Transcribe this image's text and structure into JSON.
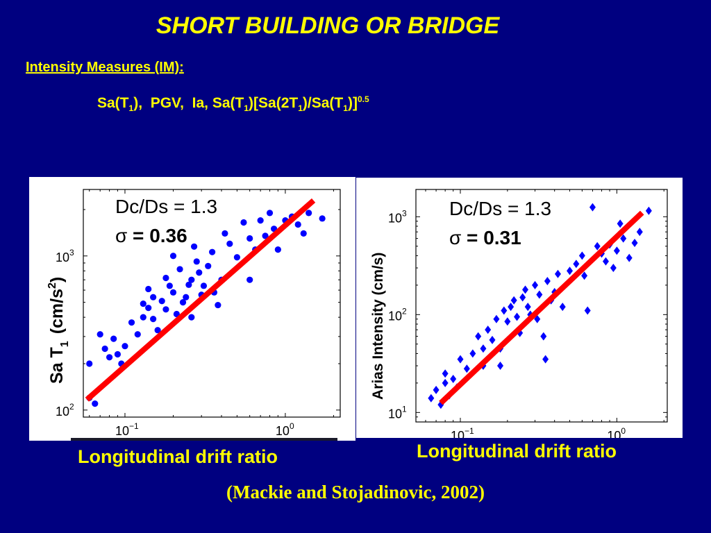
{
  "title": "SHORT BUILDING OR BRIDGE",
  "im_heading": "Intensity Measures (IM):",
  "im_list": {
    "sa": "Sa(T",
    "sa_sub": "1",
    "sa_close": "), ",
    "pgv": "PGV, ",
    "ia": "Ia, ",
    "combo_a": "Sa(T",
    "combo_sub1": "1",
    "combo_b": ")[Sa(2T",
    "combo_sub2": "1",
    "combo_c": ")/Sa(T",
    "combo_sub3": "1",
    "combo_d": ")]",
    "exponent": "0.5"
  },
  "citation": "(Mackie and Stojadinovic, 2002)",
  "colors": {
    "background": "#000080",
    "text": "#ffff00",
    "fit_line": "#ff0000",
    "points": "#0000ff"
  },
  "chart_data": [
    {
      "type": "scatter",
      "xlabel": "Longitudinal drift ratio",
      "ylabel": "Sa T1 (cm/s2)",
      "ylabel_main": "Sa T",
      "ylabel_sub": "1",
      "ylabel_unit": "(cm/s",
      "ylabel_sup": "2",
      "ylabel_close": ")",
      "x_scale": "log",
      "y_scale": "log",
      "xlim": [
        0.055,
        2.2
      ],
      "ylim": [
        90,
        2700
      ],
      "xticks": [
        {
          "base": "10",
          "exp": "−1",
          "value": 0.1
        },
        {
          "base": "10",
          "exp": "0",
          "value": 1
        }
      ],
      "yticks": [
        {
          "base": "10",
          "exp": "2",
          "value": 100
        },
        {
          "base": "10",
          "exp": "3",
          "value": 1000
        }
      ],
      "annotation_ratio": "Dc/Ds = 1.3",
      "annotation_sigma_symbol": "σ",
      "annotation_sigma": " = 0.36",
      "fit_line": {
        "x": [
          0.058,
          1.5
        ],
        "y": [
          117,
          2290
        ]
      },
      "marker": "circle",
      "points": [
        [
          0.06,
          120
        ],
        [
          0.06,
          200
        ],
        [
          0.065,
          110
        ],
        [
          0.07,
          310
        ],
        [
          0.075,
          250
        ],
        [
          0.08,
          220
        ],
        [
          0.085,
          290
        ],
        [
          0.09,
          230
        ],
        [
          0.095,
          200
        ],
        [
          0.1,
          260
        ],
        [
          0.11,
          370
        ],
        [
          0.12,
          310
        ],
        [
          0.13,
          400
        ],
        [
          0.13,
          490
        ],
        [
          0.14,
          460
        ],
        [
          0.14,
          610
        ],
        [
          0.15,
          390
        ],
        [
          0.15,
          540
        ],
        [
          0.16,
          330
        ],
        [
          0.17,
          510
        ],
        [
          0.18,
          720
        ],
        [
          0.18,
          450
        ],
        [
          0.19,
          640
        ],
        [
          0.2,
          580
        ],
        [
          0.2,
          1000
        ],
        [
          0.21,
          420
        ],
        [
          0.22,
          820
        ],
        [
          0.23,
          500
        ],
        [
          0.24,
          540
        ],
        [
          0.25,
          650
        ],
        [
          0.26,
          700
        ],
        [
          0.26,
          400
        ],
        [
          0.27,
          1150
        ],
        [
          0.28,
          920
        ],
        [
          0.29,
          780
        ],
        [
          0.3,
          560
        ],
        [
          0.31,
          640
        ],
        [
          0.33,
          860
        ],
        [
          0.35,
          1060
        ],
        [
          0.36,
          580
        ],
        [
          0.38,
          480
        ],
        [
          0.4,
          700
        ],
        [
          0.42,
          1400
        ],
        [
          0.45,
          1200
        ],
        [
          0.5,
          980
        ],
        [
          0.55,
          1650
        ],
        [
          0.6,
          1300
        ],
        [
          0.6,
          700
        ],
        [
          0.65,
          1100
        ],
        [
          0.7,
          1700
        ],
        [
          0.75,
          1350
        ],
        [
          0.8,
          1900
        ],
        [
          0.85,
          1500
        ],
        [
          0.9,
          1100
        ],
        [
          1.0,
          1700
        ],
        [
          1.1,
          1800
        ],
        [
          1.2,
          1600
        ],
        [
          1.3,
          1400
        ],
        [
          1.4,
          1900
        ],
        [
          1.7,
          1750
        ]
      ]
    },
    {
      "type": "scatter",
      "xlabel": "Longitudinal drift ratio",
      "ylabel": "Arias Intensity (cm/s)",
      "x_scale": "log",
      "y_scale": "log",
      "xlim": [
        0.052,
        2.1
      ],
      "ylim": [
        8,
        1900
      ],
      "xticks": [
        {
          "base": "10",
          "exp": "−1",
          "value": 0.1
        },
        {
          "base": "10",
          "exp": "0",
          "value": 1
        }
      ],
      "yticks": [
        {
          "base": "10",
          "exp": "1",
          "value": 10
        },
        {
          "base": "10",
          "exp": "2",
          "value": 100
        },
        {
          "base": "10",
          "exp": "3",
          "value": 1000
        }
      ],
      "annotation_ratio": "Dc/Ds = 1.3",
      "annotation_sigma_symbol": "σ",
      "annotation_sigma": " = 0.31",
      "fit_line": {
        "x": [
          0.075,
          1.45
        ],
        "y": [
          12.5,
          1100
        ]
      },
      "marker": "diamond",
      "points": [
        [
          0.065,
          14
        ],
        [
          0.07,
          17
        ],
        [
          0.075,
          12
        ],
        [
          0.08,
          25
        ],
        [
          0.08,
          20
        ],
        [
          0.085,
          15
        ],
        [
          0.09,
          22
        ],
        [
          0.095,
          18
        ],
        [
          0.1,
          35
        ],
        [
          0.11,
          28
        ],
        [
          0.12,
          40
        ],
        [
          0.13,
          60
        ],
        [
          0.14,
          45
        ],
        [
          0.14,
          30
        ],
        [
          0.15,
          70
        ],
        [
          0.16,
          55
        ],
        [
          0.17,
          90
        ],
        [
          0.18,
          45
        ],
        [
          0.18,
          30
        ],
        [
          0.19,
          110
        ],
        [
          0.2,
          85
        ],
        [
          0.21,
          120
        ],
        [
          0.22,
          140
        ],
        [
          0.23,
          95
        ],
        [
          0.24,
          65
        ],
        [
          0.25,
          150
        ],
        [
          0.26,
          180
        ],
        [
          0.27,
          120
        ],
        [
          0.28,
          100
        ],
        [
          0.3,
          200
        ],
        [
          0.31,
          90
        ],
        [
          0.32,
          160
        ],
        [
          0.34,
          60
        ],
        [
          0.35,
          35
        ],
        [
          0.36,
          220
        ],
        [
          0.38,
          140
        ],
        [
          0.4,
          170
        ],
        [
          0.42,
          260
        ],
        [
          0.45,
          120
        ],
        [
          0.5,
          280
        ],
        [
          0.55,
          330
        ],
        [
          0.6,
          400
        ],
        [
          0.62,
          250
        ],
        [
          0.65,
          110
        ],
        [
          0.7,
          1250
        ],
        [
          0.75,
          500
        ],
        [
          0.8,
          420
        ],
        [
          0.85,
          350
        ],
        [
          0.9,
          520
        ],
        [
          0.95,
          300
        ],
        [
          1.0,
          450
        ],
        [
          1.05,
          850
        ],
        [
          1.1,
          600
        ],
        [
          1.2,
          380
        ],
        [
          1.3,
          540
        ],
        [
          1.4,
          700
        ],
        [
          1.6,
          1150
        ]
      ]
    }
  ]
}
